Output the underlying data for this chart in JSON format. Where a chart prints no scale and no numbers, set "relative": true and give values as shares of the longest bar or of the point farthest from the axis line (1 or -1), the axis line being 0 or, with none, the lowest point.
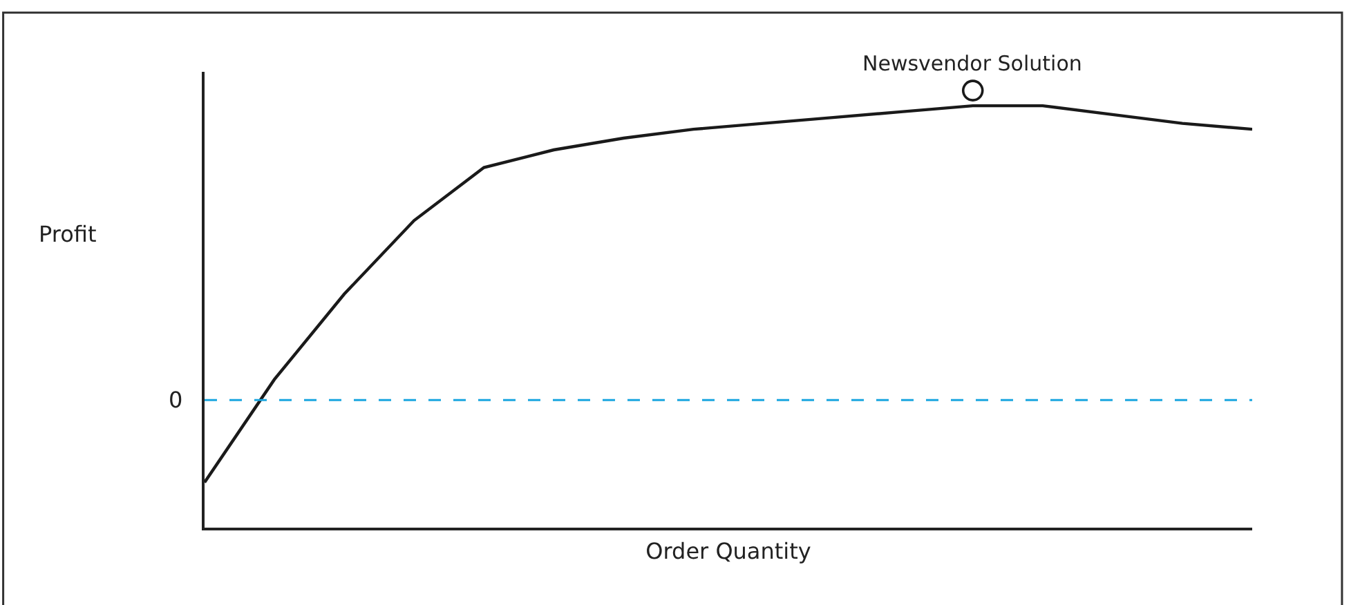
{
  "chart_data": {
    "type": "line",
    "relative": true,
    "xlabel": "Order Quantity",
    "ylabel": "Profit",
    "categories": [
      null,
      null,
      null,
      null,
      null,
      null,
      null,
      null,
      null,
      null,
      null,
      null,
      null,
      null,
      null,
      null
    ],
    "series": [
      {
        "color": "#1a1a1a",
        "values": [
          -0.28,
          0.07,
          0.36,
          0.61,
          0.79,
          0.85,
          0.89,
          0.92,
          0.94,
          0.96,
          0.98,
          1.0,
          1.0,
          0.97,
          0.94,
          0.92
        ]
      }
    ],
    "annotations": [
      {
        "text": "Newsvendor Solution",
        "y": 1.0
      }
    ],
    "ref_lines": [
      {
        "axis": "y",
        "value": 0,
        "label": "0",
        "color": "#1ba6e0",
        "line_style": "dashed"
      }
    ]
  }
}
